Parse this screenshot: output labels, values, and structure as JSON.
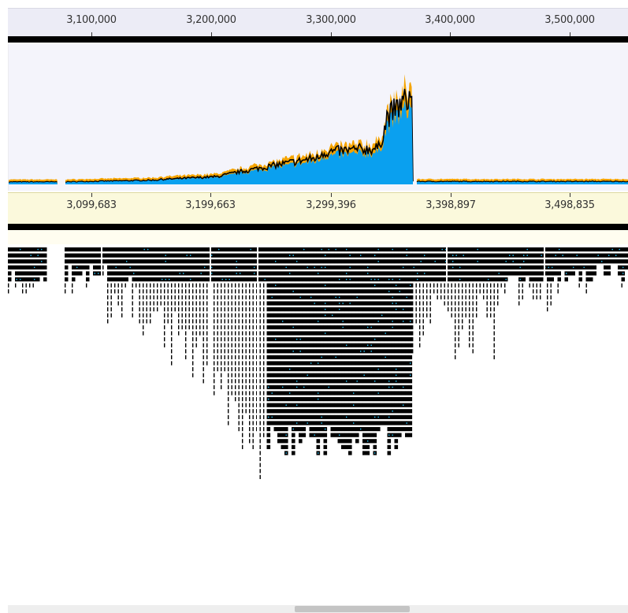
{
  "top_ruler": {
    "labels": [
      "3,100,000",
      "3,200,000",
      "3,300,000",
      "3,400,000",
      "3,500,000"
    ]
  },
  "bottom_ruler": {
    "labels": [
      "3,099,683",
      "3,199,663",
      "3,299,396",
      "3,398,897",
      "3,498,835"
    ]
  },
  "colors": {
    "coverage_fill": "#0aa0ef",
    "coverage_outline": "#f5a400",
    "coverage_line": "#000000",
    "read": "#000000",
    "mismatch": "#28b8e8",
    "top_ruler_bg": "#ececf6",
    "bottom_ruler_bg": "#fbf9dc"
  },
  "icons": {
    "scrollbar": "horizontal-scroll-thumb"
  }
}
